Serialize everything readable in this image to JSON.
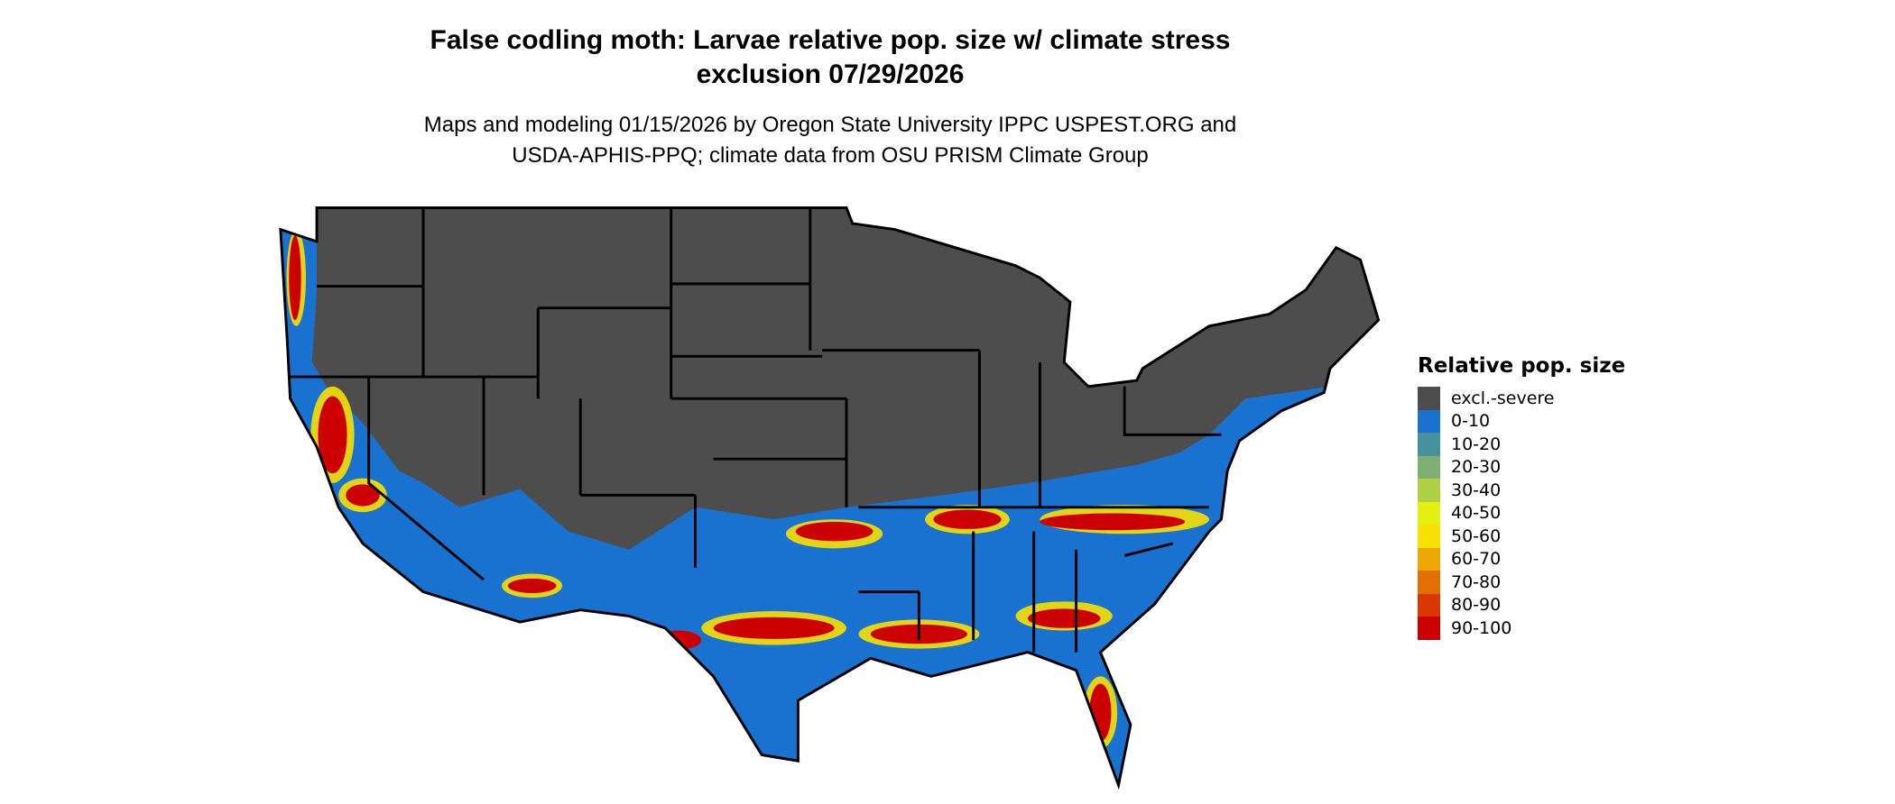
{
  "title": {
    "line1": "False codling moth: Larvae relative pop. size w/ climate stress",
    "line2": "exclusion 07/29/2026"
  },
  "subtitle": {
    "line1": "Maps and modeling 01/15/2026 by Oregon State University IPPC USPEST.ORG and",
    "line2": "USDA-APHIS-PPQ; climate data from OSU PRISM Climate Group"
  },
  "legend": {
    "title": "Relative pop. size",
    "items": [
      {
        "label": "excl.-severe",
        "color": "#4d4d4d"
      },
      {
        "label": "0-10",
        "color": "#1a72d0"
      },
      {
        "label": "10-20",
        "color": "#47919c"
      },
      {
        "label": "20-30",
        "color": "#7daf72"
      },
      {
        "label": "30-40",
        "color": "#b0d044"
      },
      {
        "label": "40-50",
        "color": "#e4f012"
      },
      {
        "label": "50-60",
        "color": "#f8e000"
      },
      {
        "label": "60-70",
        "color": "#eea800"
      },
      {
        "label": "70-80",
        "color": "#e47000"
      },
      {
        "label": "80-90",
        "color": "#da3800"
      },
      {
        "label": "90-100",
        "color": "#cc0000"
      }
    ]
  }
}
